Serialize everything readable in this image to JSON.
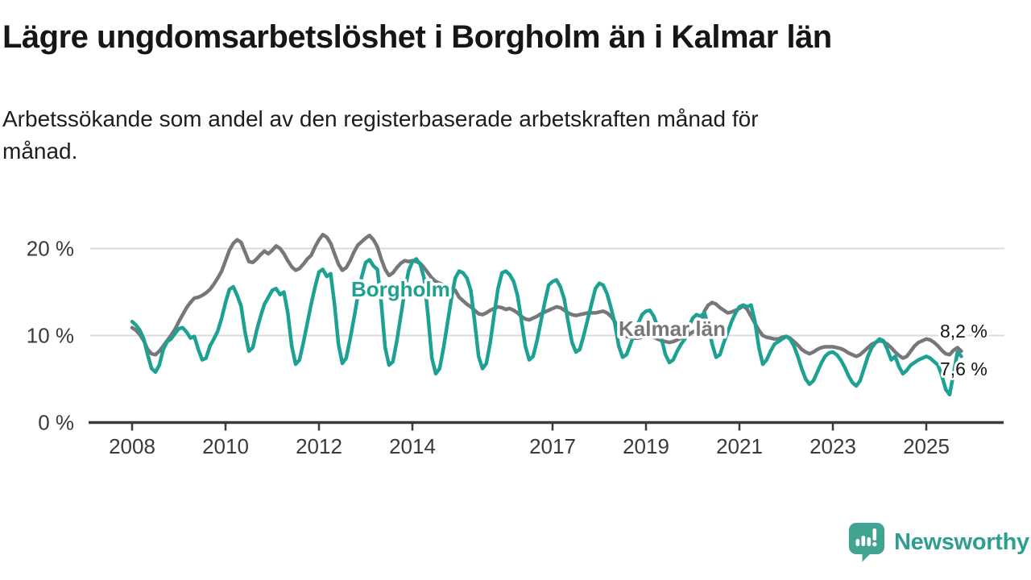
{
  "header": {
    "title": "Lägre ungdomsarbetslöshet i Borgholm än i Kalmar län",
    "subtitle": "Arbetssökande som andel av den registerbaserade arbetskraften månad för månad.",
    "subtitle_line1": "Arbetssökande som andel av den registerbaserade arbetskraften månad för",
    "subtitle_line2": "månad."
  },
  "footer": {
    "brand": "Newsworthy"
  },
  "colors": {
    "borgholm": "#1ca192",
    "kalmar": "#77777b",
    "logo": "#41a392",
    "axis": "#3a3a3e",
    "grid": "#dbdbdb",
    "title_text": "#161616",
    "tick_text": "#3a3a3a"
  },
  "chart_data": {
    "type": "line",
    "freq": "monthly",
    "start": "2008-01",
    "end": "2025-10",
    "ylabel": "",
    "xlabel": "",
    "ylim": [
      0,
      22.5
    ],
    "grid": "horizontal",
    "legend_position": "inline-labels",
    "yticks": [
      {
        "value": 20,
        "label": "20 %"
      },
      {
        "value": 10,
        "label": "10 %"
      },
      {
        "value": 0,
        "label": "0 %"
      }
    ],
    "xticks": [
      2008,
      2010,
      2012,
      2014,
      2017,
      2019,
      2021,
      2023,
      2025
    ],
    "series": [
      {
        "name": "Borgholm",
        "color_key": "borgholm",
        "end_label": "7,6 %",
        "last_value": 7.6,
        "values": [
          11.6,
          11.2,
          10.6,
          9.6,
          7.8,
          6.2,
          5.8,
          6.6,
          8.4,
          9.3,
          9.6,
          10.2,
          10.8,
          10.9,
          10.4,
          9.7,
          9.9,
          8.4,
          7.2,
          7.4,
          8.8,
          9.6,
          10.5,
          12.0,
          13.8,
          15.3,
          15.6,
          14.6,
          13.4,
          10.4,
          8.2,
          8.6,
          10.6,
          12.2,
          13.6,
          14.4,
          15.2,
          15.4,
          14.7,
          15.0,
          12.6,
          8.8,
          6.7,
          7.2,
          9.2,
          11.4,
          13.6,
          15.6,
          17.3,
          17.6,
          16.8,
          17.1,
          13.6,
          9.0,
          6.8,
          7.4,
          9.6,
          12.0,
          14.6,
          16.8,
          18.4,
          18.7,
          18.0,
          17.6,
          13.8,
          8.6,
          6.6,
          7.0,
          9.4,
          12.2,
          15.0,
          17.4,
          18.5,
          18.8,
          18.2,
          16.6,
          12.4,
          7.4,
          5.6,
          6.2,
          8.6,
          11.4,
          14.2,
          16.6,
          17.4,
          17.2,
          16.6,
          15.2,
          11.6,
          7.6,
          6.2,
          6.8,
          9.2,
          12.4,
          15.4,
          17.2,
          17.4,
          17.0,
          16.2,
          14.6,
          11.8,
          8.8,
          7.2,
          7.6,
          9.4,
          11.6,
          13.8,
          15.8,
          16.2,
          16.4,
          15.6,
          14.2,
          11.6,
          9.2,
          8.1,
          8.4,
          10.0,
          11.8,
          13.6,
          15.4,
          16.0,
          15.8,
          14.8,
          13.2,
          11.4,
          8.8,
          7.5,
          7.8,
          9.0,
          10.2,
          11.4,
          12.4,
          12.8,
          12.9,
          12.2,
          11.0,
          9.6,
          7.8,
          6.9,
          7.2,
          8.2,
          9.0,
          9.6,
          11.0,
          12.0,
          12.4,
          12.2,
          12.6,
          11.2,
          9.0,
          7.5,
          7.8,
          9.2,
          10.4,
          11.6,
          12.6,
          13.3,
          13.5,
          13.3,
          13.5,
          11.6,
          8.6,
          6.7,
          7.2,
          8.2,
          9.0,
          9.3,
          9.6,
          9.9,
          9.6,
          8.8,
          7.6,
          6.2,
          5.0,
          4.4,
          4.8,
          5.8,
          6.8,
          7.6,
          8.0,
          8.1,
          7.8,
          7.2,
          6.4,
          5.4,
          4.6,
          4.2,
          4.8,
          6.2,
          7.6,
          8.6,
          9.2,
          9.6,
          9.4,
          8.4,
          7.2,
          7.6,
          6.4,
          5.6,
          6.0,
          6.6,
          6.9,
          7.2,
          7.4,
          7.6,
          7.4,
          7.0,
          6.6,
          5.4,
          3.8,
          3.2,
          5.6,
          8.1,
          7.6
        ]
      },
      {
        "name": "Kalmar län",
        "color_key": "kalmar",
        "end_label": "8,2 %",
        "last_value": 8.2,
        "values": [
          10.9,
          10.6,
          10.1,
          9.4,
          8.4,
          7.9,
          7.8,
          8.2,
          8.8,
          9.4,
          10.0,
          10.7,
          11.6,
          12.4,
          13.2,
          13.8,
          14.3,
          14.4,
          14.6,
          14.9,
          15.3,
          15.9,
          16.6,
          17.4,
          18.6,
          19.8,
          20.6,
          21.0,
          20.7,
          19.6,
          18.5,
          18.4,
          18.8,
          19.3,
          19.7,
          19.4,
          19.8,
          20.3,
          20.0,
          19.4,
          18.6,
          17.9,
          17.5,
          17.7,
          18.2,
          18.8,
          19.2,
          20.2,
          21.0,
          21.6,
          21.3,
          20.6,
          19.4,
          18.2,
          17.5,
          17.8,
          18.6,
          19.6,
          20.4,
          20.8,
          21.2,
          21.5,
          21.0,
          20.2,
          18.8,
          17.6,
          16.9,
          17.2,
          17.8,
          18.3,
          18.6,
          18.5,
          18.6,
          18.5,
          18.3,
          17.8,
          17.2,
          16.6,
          16.2,
          16.0,
          15.8,
          15.5,
          15.3,
          15.2,
          14.4,
          14.0,
          13.6,
          13.3,
          12.9,
          12.5,
          12.4,
          12.6,
          12.9,
          13.1,
          13.3,
          13.2,
          13.0,
          13.1,
          12.9,
          12.6,
          12.2,
          11.9,
          11.8,
          12.0,
          12.2,
          12.5,
          12.7,
          12.9,
          13.1,
          13.3,
          13.2,
          12.9,
          12.6,
          12.4,
          12.3,
          12.4,
          12.5,
          12.6,
          12.6,
          12.6,
          12.7,
          12.8,
          12.6,
          12.2,
          11.6,
          10.8,
          10.2,
          9.9,
          9.8,
          9.7,
          9.7,
          9.8,
          9.9,
          10.0,
          9.8,
          9.6,
          9.4,
          9.3,
          9.2,
          9.3,
          9.5,
          9.7,
          9.9,
          10.1,
          10.4,
          10.6,
          11.0,
          12.8,
          13.5,
          13.8,
          13.6,
          13.2,
          12.9,
          12.6,
          12.7,
          12.9,
          13.1,
          13.4,
          13.0,
          12.2,
          11.4,
          10.6,
          10.0,
          9.8,
          9.7,
          9.6,
          9.6,
          9.8,
          9.9,
          9.7,
          9.3,
          8.9,
          8.4,
          8.1,
          7.9,
          8.1,
          8.4,
          8.6,
          8.7,
          8.7,
          8.7,
          8.6,
          8.5,
          8.3,
          8.0,
          7.8,
          7.6,
          7.8,
          8.2,
          8.6,
          9.0,
          9.2,
          9.4,
          9.3,
          9.0,
          8.6,
          8.1,
          7.7,
          7.4,
          7.6,
          8.2,
          8.8,
          9.2,
          9.4,
          9.6,
          9.5,
          9.2,
          8.8,
          8.3,
          7.9,
          7.8,
          8.3,
          8.6,
          8.2
        ]
      }
    ]
  }
}
